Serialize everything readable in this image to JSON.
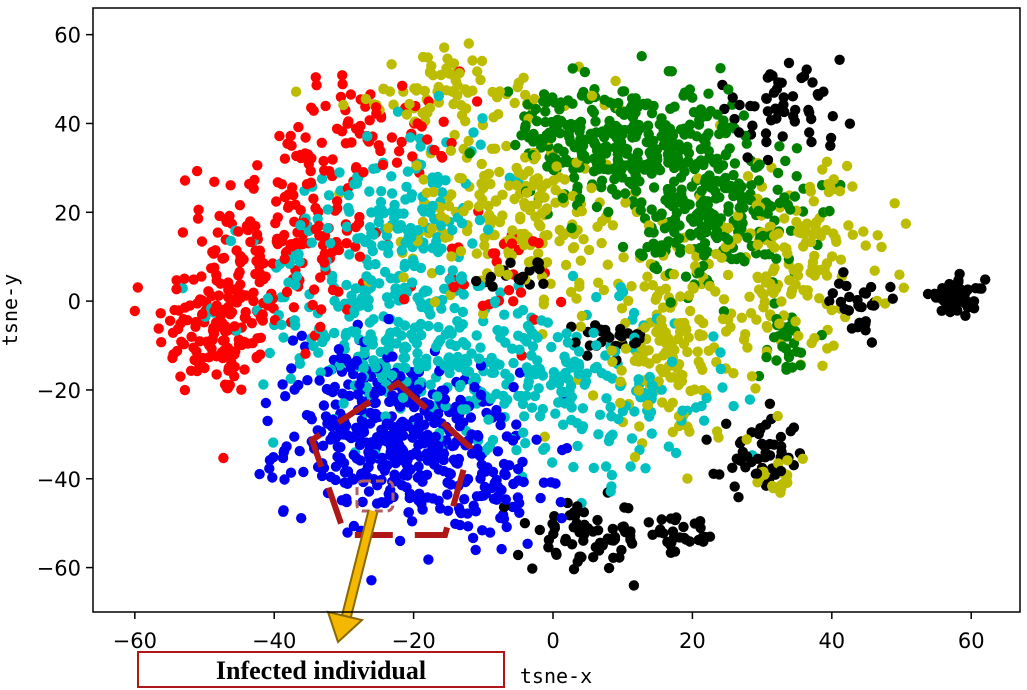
{
  "chart_data": {
    "type": "scatter",
    "title": "",
    "xlabel": "tsne-x",
    "ylabel": "tsne-y",
    "xlim": [
      -66,
      67
    ],
    "ylim": [
      -70,
      66
    ],
    "xticks": [
      -60,
      -40,
      -20,
      0,
      20,
      40,
      60
    ],
    "yticks": [
      -60,
      -40,
      -20,
      0,
      20,
      40,
      60
    ],
    "grid": false,
    "series": [
      {
        "color": "#ff0000",
        "clusters": [
          {
            "cx": -48,
            "cy": -6,
            "sx": 4.5,
            "sy": 8,
            "n": 140
          },
          {
            "cx": -38,
            "cy": 15,
            "sx": 6,
            "sy": 12,
            "n": 170
          },
          {
            "cx": -25,
            "cy": 40,
            "sx": 6,
            "sy": 6,
            "n": 60
          },
          {
            "cx": -10,
            "cy": 5,
            "sx": 6,
            "sy": 6,
            "n": 30
          }
        ]
      },
      {
        "color": "#0000ee",
        "clusters": [
          {
            "cx": -22,
            "cy": -32,
            "sx": 8,
            "sy": 8,
            "n": 380
          },
          {
            "cx": -10,
            "cy": -45,
            "sx": 5,
            "sy": 6,
            "n": 60
          },
          {
            "cx": -28,
            "cy": -15,
            "sx": 5,
            "sy": 6,
            "n": 50
          }
        ]
      },
      {
        "color": "#00c0c0",
        "clusters": [
          {
            "cx": -25,
            "cy": 0,
            "sx": 9,
            "sy": 12,
            "n": 260
          },
          {
            "cx": -8,
            "cy": -15,
            "sx": 10,
            "sy": 8,
            "n": 180
          },
          {
            "cx": 8,
            "cy": -22,
            "sx": 9,
            "sy": 10,
            "n": 110
          },
          {
            "cx": -20,
            "cy": 25,
            "sx": 6,
            "sy": 8,
            "n": 80
          }
        ]
      },
      {
        "color": "#008000",
        "clusters": [
          {
            "cx": 12,
            "cy": 35,
            "sx": 8,
            "sy": 7,
            "n": 330
          },
          {
            "cx": 24,
            "cy": 18,
            "sx": 6,
            "sy": 7,
            "n": 190
          },
          {
            "cx": 0,
            "cy": 38,
            "sx": 5,
            "sy": 5,
            "n": 40
          },
          {
            "cx": 33,
            "cy": -10,
            "sx": 2,
            "sy": 4,
            "n": 30
          }
        ]
      },
      {
        "color": "#bcbc00",
        "clusters": [
          {
            "cx": -5,
            "cy": 20,
            "sx": 8,
            "sy": 9,
            "n": 210
          },
          {
            "cx": 17,
            "cy": -10,
            "sx": 6,
            "sy": 12,
            "n": 170
          },
          {
            "cx": 35,
            "cy": 10,
            "sx": 7,
            "sy": 10,
            "n": 150
          },
          {
            "cx": -15,
            "cy": 47,
            "sx": 10,
            "sy": 5,
            "n": 80
          },
          {
            "cx": 32,
            "cy": -40,
            "sx": 2,
            "sy": 2,
            "n": 20
          }
        ]
      },
      {
        "color": "#000000",
        "clusters": [
          {
            "cx": 58,
            "cy": 1,
            "sx": 2,
            "sy": 2,
            "n": 50
          },
          {
            "cx": 44,
            "cy": 0,
            "sx": 2,
            "sy": 3,
            "n": 30
          },
          {
            "cx": 32,
            "cy": 43,
            "sx": 5,
            "sy": 4,
            "n": 55
          },
          {
            "cx": 5,
            "cy": -53,
            "sx": 4,
            "sy": 4,
            "n": 70
          },
          {
            "cx": 18,
            "cy": -53,
            "sx": 3,
            "sy": 2,
            "n": 30
          },
          {
            "cx": 30,
            "cy": -35,
            "sx": 3,
            "sy": 4,
            "n": 50
          },
          {
            "cx": 8,
            "cy": -8,
            "sx": 3,
            "sy": 2,
            "n": 25
          },
          {
            "cx": -5,
            "cy": 5,
            "sx": 3,
            "sy": 2,
            "n": 20
          }
        ]
      }
    ],
    "annotation": {
      "label": "Infected individual",
      "pentagon_color": "#b01818",
      "arrow_color": "#f5b800",
      "box_color": "#b01818"
    }
  }
}
